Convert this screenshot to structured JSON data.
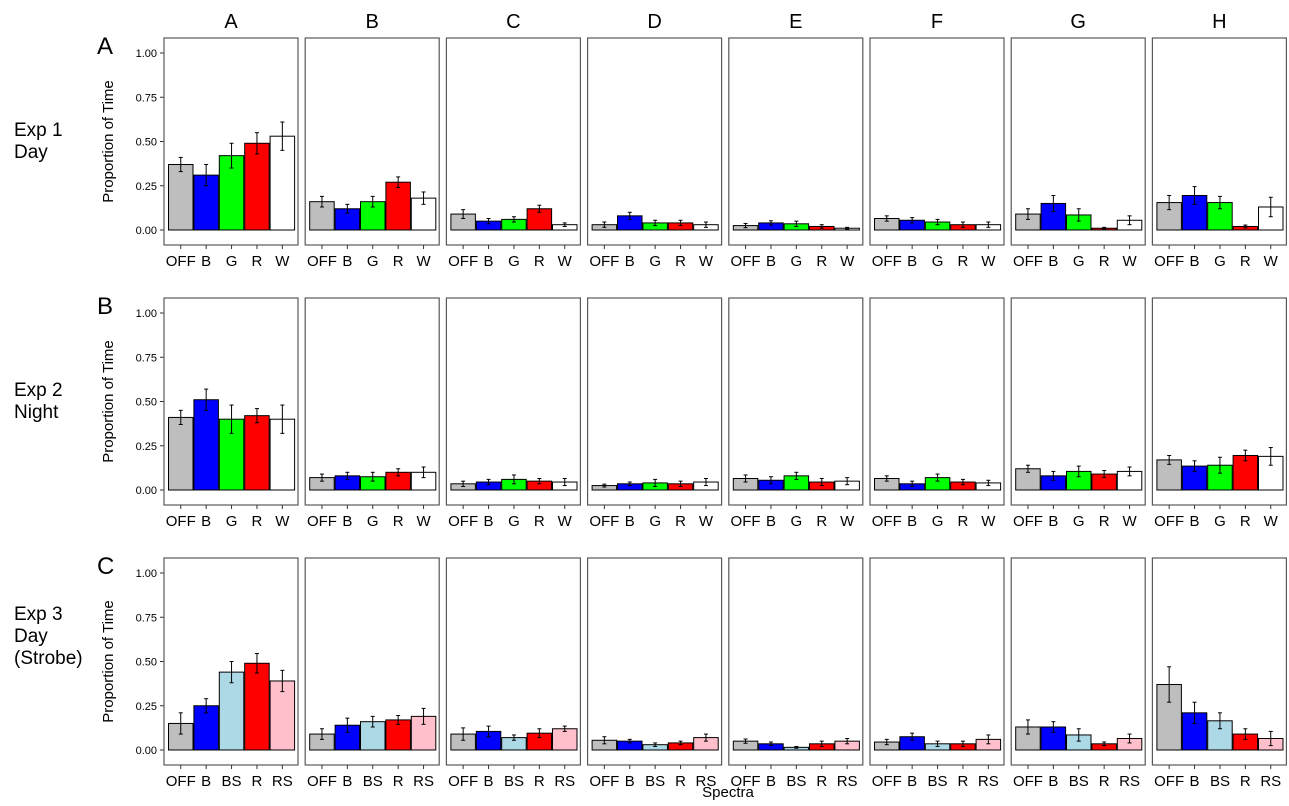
{
  "columns": [
    "A",
    "B",
    "C",
    "D",
    "E",
    "F",
    "G",
    "H"
  ],
  "rows": [
    {
      "letter": "A",
      "label_lines": [
        "Exp 1",
        "Day"
      ]
    },
    {
      "letter": "B",
      "label_lines": [
        "Exp 2",
        "Night"
      ]
    },
    {
      "letter": "C",
      "label_lines": [
        "Exp 3",
        "Day",
        "(Strobe)"
      ]
    }
  ],
  "ylabel": "Proportion of Time",
  "xlabel": "Spectra",
  "y_ticks": [
    "0.00",
    "0.25",
    "0.50",
    "0.75",
    "1.00"
  ],
  "colors": {
    "OFF": "#bebebe",
    "B": "#0000ff",
    "G": "#00ff00",
    "R": "#ff0000",
    "W": "#ffffff",
    "BS": "#add8e6",
    "RS": "#ffc0cb"
  },
  "chart_data": {
    "type": "bar",
    "ylim": [
      0,
      1
    ],
    "grid": false,
    "error_bars": true,
    "facets": [
      {
        "row": "A",
        "categories": [
          "OFF",
          "B",
          "G",
          "R",
          "W"
        ],
        "panels": [
          {
            "col": "A",
            "values": [
              0.37,
              0.31,
              0.42,
              0.49,
              0.53
            ],
            "errors": [
              0.04,
              0.06,
              0.07,
              0.06,
              0.08
            ]
          },
          {
            "col": "B",
            "values": [
              0.16,
              0.12,
              0.16,
              0.27,
              0.18
            ],
            "errors": [
              0.03,
              0.025,
              0.03,
              0.03,
              0.035
            ]
          },
          {
            "col": "C",
            "values": [
              0.09,
              0.05,
              0.06,
              0.12,
              0.03
            ],
            "errors": [
              0.025,
              0.015,
              0.015,
              0.02,
              0.01
            ]
          },
          {
            "col": "D",
            "values": [
              0.03,
              0.08,
              0.04,
              0.04,
              0.03
            ],
            "errors": [
              0.015,
              0.02,
              0.015,
              0.015,
              0.015
            ]
          },
          {
            "col": "E",
            "values": [
              0.025,
              0.04,
              0.035,
              0.02,
              0.01
            ],
            "errors": [
              0.012,
              0.012,
              0.015,
              0.01,
              0.005
            ]
          },
          {
            "col": "F",
            "values": [
              0.065,
              0.055,
              0.045,
              0.03,
              0.03
            ],
            "errors": [
              0.015,
              0.015,
              0.015,
              0.015,
              0.015
            ]
          },
          {
            "col": "G",
            "values": [
              0.09,
              0.15,
              0.085,
              0.01,
              0.055
            ],
            "errors": [
              0.03,
              0.045,
              0.035,
              0.005,
              0.025
            ]
          },
          {
            "col": "H",
            "values": [
              0.155,
              0.195,
              0.155,
              0.02,
              0.13
            ],
            "errors": [
              0.04,
              0.05,
              0.035,
              0.008,
              0.055
            ]
          }
        ]
      },
      {
        "row": "B",
        "categories": [
          "OFF",
          "B",
          "G",
          "R",
          "W"
        ],
        "panels": [
          {
            "col": "A",
            "values": [
              0.41,
              0.51,
              0.4,
              0.42,
              0.4
            ],
            "errors": [
              0.04,
              0.06,
              0.08,
              0.04,
              0.08
            ]
          },
          {
            "col": "B",
            "values": [
              0.07,
              0.08,
              0.075,
              0.1,
              0.1
            ],
            "errors": [
              0.02,
              0.02,
              0.025,
              0.02,
              0.03
            ]
          },
          {
            "col": "C",
            "values": [
              0.035,
              0.045,
              0.06,
              0.05,
              0.045
            ],
            "errors": [
              0.015,
              0.015,
              0.025,
              0.015,
              0.02
            ]
          },
          {
            "col": "D",
            "values": [
              0.025,
              0.035,
              0.04,
              0.035,
              0.045
            ],
            "errors": [
              0.008,
              0.01,
              0.02,
              0.015,
              0.02
            ]
          },
          {
            "col": "E",
            "values": [
              0.065,
              0.055,
              0.08,
              0.045,
              0.05
            ],
            "errors": [
              0.02,
              0.02,
              0.02,
              0.02,
              0.02
            ]
          },
          {
            "col": "F",
            "values": [
              0.065,
              0.035,
              0.07,
              0.045,
              0.04
            ],
            "errors": [
              0.015,
              0.015,
              0.02,
              0.015,
              0.015
            ]
          },
          {
            "col": "G",
            "values": [
              0.12,
              0.08,
              0.105,
              0.09,
              0.105
            ],
            "errors": [
              0.02,
              0.025,
              0.03,
              0.02,
              0.025
            ]
          },
          {
            "col": "H",
            "values": [
              0.17,
              0.135,
              0.14,
              0.195,
              0.19
            ],
            "errors": [
              0.025,
              0.03,
              0.045,
              0.03,
              0.05
            ]
          }
        ]
      },
      {
        "row": "C",
        "categories": [
          "OFF",
          "B",
          "BS",
          "R",
          "RS"
        ],
        "panels": [
          {
            "col": "A",
            "values": [
              0.15,
              0.25,
              0.44,
              0.49,
              0.39
            ],
            "errors": [
              0.06,
              0.04,
              0.06,
              0.055,
              0.06
            ]
          },
          {
            "col": "B",
            "values": [
              0.09,
              0.14,
              0.16,
              0.17,
              0.19
            ],
            "errors": [
              0.03,
              0.04,
              0.03,
              0.025,
              0.045
            ]
          },
          {
            "col": "C",
            "values": [
              0.09,
              0.105,
              0.07,
              0.095,
              0.12
            ],
            "errors": [
              0.035,
              0.03,
              0.015,
              0.025,
              0.015
            ]
          },
          {
            "col": "D",
            "values": [
              0.055,
              0.05,
              0.03,
              0.04,
              0.07
            ],
            "errors": [
              0.02,
              0.01,
              0.01,
              0.01,
              0.02
            ]
          },
          {
            "col": "E",
            "values": [
              0.05,
              0.035,
              0.015,
              0.035,
              0.05
            ],
            "errors": [
              0.012,
              0.01,
              0.005,
              0.015,
              0.015
            ]
          },
          {
            "col": "F",
            "values": [
              0.045,
              0.075,
              0.035,
              0.035,
              0.06
            ],
            "errors": [
              0.015,
              0.02,
              0.015,
              0.015,
              0.025
            ]
          },
          {
            "col": "G",
            "values": [
              0.13,
              0.13,
              0.085,
              0.035,
              0.065
            ],
            "errors": [
              0.04,
              0.03,
              0.035,
              0.01,
              0.025
            ]
          },
          {
            "col": "H",
            "values": [
              0.37,
              0.21,
              0.165,
              0.09,
              0.065
            ],
            "errors": [
              0.1,
              0.06,
              0.045,
              0.03,
              0.04
            ]
          }
        ]
      }
    ]
  }
}
